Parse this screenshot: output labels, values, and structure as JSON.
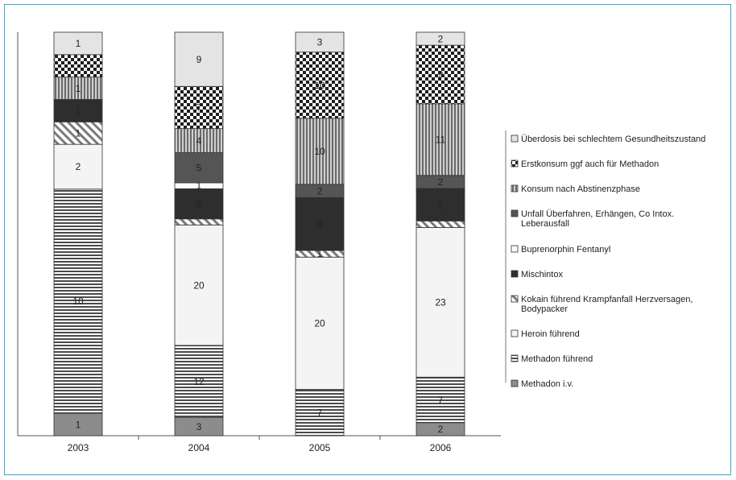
{
  "chart_data": {
    "type": "stacked-bar",
    "title": "",
    "xlabel": "",
    "ylabel": "",
    "categories": [
      "2003",
      "2004",
      "2005",
      "2006"
    ],
    "series": [
      {
        "name": "Methadon i.v.",
        "values": [
          1,
          3,
          0,
          2
        ],
        "fill": "#8c8c8c"
      },
      {
        "name": "Methadon führend",
        "values": [
          10,
          12,
          7,
          7
        ],
        "fill": "pattern-hlines"
      },
      {
        "name": "Heroin führend",
        "values": [
          2,
          20,
          20,
          23
        ],
        "fill": "#f4f4f4"
      },
      {
        "name": "Kokain führend Krampfanfall Herzversagen, Bodypacker",
        "values": [
          1,
          1,
          1,
          1
        ],
        "fill": "pattern-diag"
      },
      {
        "name": "Mischintox",
        "values": [
          1,
          5,
          8,
          5
        ],
        "fill": "#2e2e2e"
      },
      {
        "name": "Buprenorphin Fentanyl",
        "values": [
          0,
          1,
          0,
          0
        ],
        "fill": "#fbfbfb"
      },
      {
        "name": "Unfall Überfahren, Erhängen, Co Intox. Leberausfall",
        "values": [
          0,
          5,
          2,
          2
        ],
        "fill": "#555555"
      },
      {
        "name": "Konsum nach Abstinenzphase",
        "values": [
          1,
          4,
          10,
          11
        ],
        "fill": "pattern-vlines"
      },
      {
        "name": "Erstkonsum ggf auch für Methadon",
        "values": [
          1,
          7,
          10,
          9
        ],
        "fill": "pattern-checker"
      },
      {
        "name": "Überdosis bei schlechtem Gesundheitszustand",
        "values": [
          1,
          9,
          3,
          2
        ],
        "fill": "#e4e4e4"
      }
    ],
    "segment_labels": [
      [
        "1",
        "10",
        "2",
        "1",
        "1",
        "",
        "",
        "1",
        "",
        "1"
      ],
      [
        "3",
        "12",
        "20",
        "",
        "5",
        "1",
        "5",
        "4",
        "7",
        "9"
      ],
      [
        "",
        "7",
        "20",
        "1",
        "8",
        "",
        "2",
        "10",
        "10",
        "3"
      ],
      [
        "2",
        "7",
        "23",
        "",
        "5",
        "",
        "2",
        "11",
        "9",
        "2"
      ]
    ],
    "legend_order": [
      "Überdosis bei schlechtem Gesundheitszustand",
      "Erstkonsum ggf auch für Methadon",
      "Konsum nach Abstinenzphase",
      "Unfall Überfahren, Erhängen, Co Intox. Leberausfall",
      "Buprenorphin Fentanyl",
      "Mischintox",
      "Kokain führend Krampfanfall Herzversagen, Bodypacker",
      "Heroin führend",
      "Methadon führend",
      "Methadon i.v."
    ],
    "legend_position": "right",
    "grid": false,
    "border_color": "#3aa7cf"
  }
}
